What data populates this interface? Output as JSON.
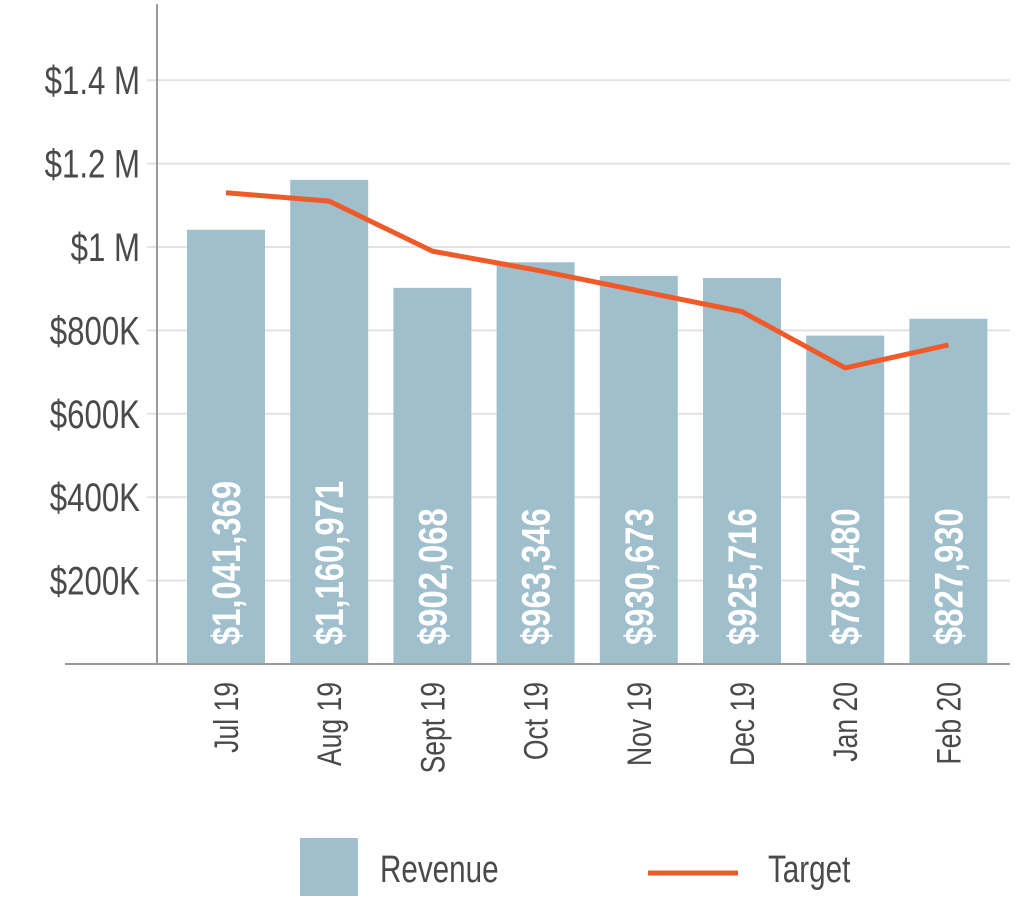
{
  "chart_data": {
    "type": "bar+line",
    "categories": [
      "Jul 19",
      "Aug 19",
      "Sept 19",
      "Oct 19",
      "Nov 19",
      "Dec 19",
      "Jan 20",
      "Feb 20"
    ],
    "series": [
      {
        "name": "Revenue",
        "type": "bar",
        "color": "#a0bfcd",
        "values": [
          1041369,
          1160971,
          902068,
          963346,
          930673,
          925716,
          787480,
          827930
        ],
        "labels": [
          "$1,041,369",
          "$1,160,971",
          "$902,068",
          "$963,346",
          "$930,673",
          "$925,716",
          "$787,480",
          "$827,930"
        ]
      },
      {
        "name": "Target",
        "type": "line",
        "color": "#f05a28",
        "values": [
          1130000,
          1110000,
          990000,
          945000,
          895000,
          845000,
          710000,
          765000
        ]
      }
    ],
    "yticks": [
      {
        "value": 200000,
        "label": "$200K"
      },
      {
        "value": 400000,
        "label": "$400K"
      },
      {
        "value": 600000,
        "label": "$600K"
      },
      {
        "value": 800000,
        "label": "$800K"
      },
      {
        "value": 1000000,
        "label": "$1 M"
      },
      {
        "value": 1200000,
        "label": "$1.2 M"
      },
      {
        "value": 1400000,
        "label": "$1.4 M"
      }
    ],
    "ylim": [
      0,
      1580000
    ],
    "grid": true,
    "legend_position": "bottom",
    "title": "",
    "xlabel": "",
    "ylabel": ""
  }
}
